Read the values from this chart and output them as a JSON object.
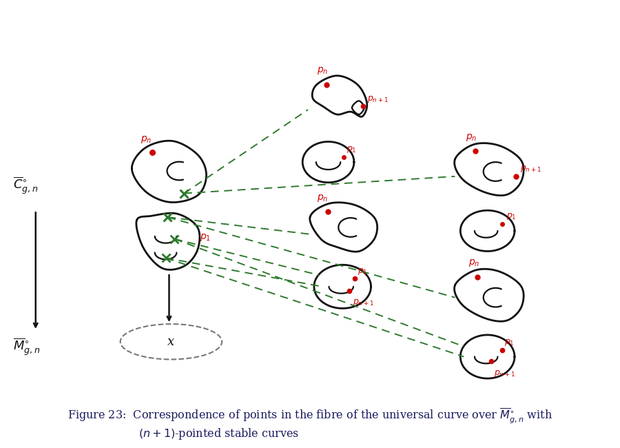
{
  "bg_color": "#ffffff",
  "text_color": "#000000",
  "red_color": "#cc0000",
  "green_color": "#2d7a2d",
  "black_color": "#111111",
  "curve_lw": 2.0,
  "caption_line1": "Figure 23:  Correspondence of points in the fibre of the universal curve over $\\overline{M}^{\\circ}_{g,n}$ with",
  "caption_line2": "$(n+1)$-pointed stable curves"
}
